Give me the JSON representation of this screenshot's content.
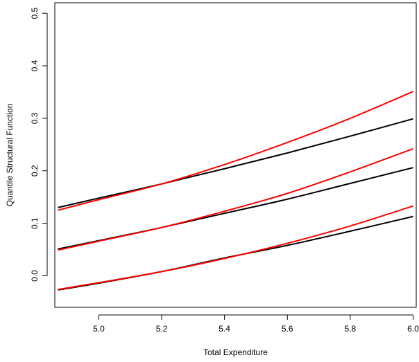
{
  "chart_data": {
    "type": "line",
    "title": "",
    "xlabel": "Total Expenditure",
    "ylabel": "Quantile Structural Function",
    "xlim": [
      4.86,
      6.01
    ],
    "ylim": [
      -0.06,
      0.52
    ],
    "x_ticks": [
      5.0,
      5.2,
      5.4,
      5.6,
      5.8,
      6.0
    ],
    "x_tick_labels": [
      "5.0",
      "5.2",
      "5.4",
      "5.6",
      "5.8",
      "6.0"
    ],
    "y_ticks": [
      0.0,
      0.1,
      0.2,
      0.3,
      0.4,
      0.5
    ],
    "y_tick_labels": [
      "0.0",
      "0.1",
      "0.2",
      "0.3",
      "0.4",
      "0.5"
    ],
    "grid": false,
    "legend": "none",
    "x": [
      4.87,
      5.0,
      5.2,
      5.4,
      5.6,
      5.8,
      6.0
    ],
    "series": [
      {
        "color": "#000000",
        "values": [
          0.13,
          0.148,
          0.175,
          0.204,
          0.234,
          0.266,
          0.299
        ]
      },
      {
        "color": "#ff0000",
        "values": [
          0.125,
          0.145,
          0.175,
          0.212,
          0.254,
          0.3,
          0.351
        ]
      },
      {
        "color": "#000000",
        "values": [
          0.051,
          0.067,
          0.092,
          0.119,
          0.146,
          0.176,
          0.206
        ]
      },
      {
        "color": "#ff0000",
        "values": [
          0.049,
          0.066,
          0.092,
          0.123,
          0.157,
          0.198,
          0.242
        ]
      },
      {
        "color": "#000000",
        "values": [
          -0.027,
          -0.014,
          0.008,
          0.034,
          0.058,
          0.085,
          0.113
        ]
      },
      {
        "color": "#ff0000",
        "values": [
          -0.026,
          -0.013,
          0.008,
          0.033,
          0.062,
          0.095,
          0.133
        ]
      }
    ]
  }
}
